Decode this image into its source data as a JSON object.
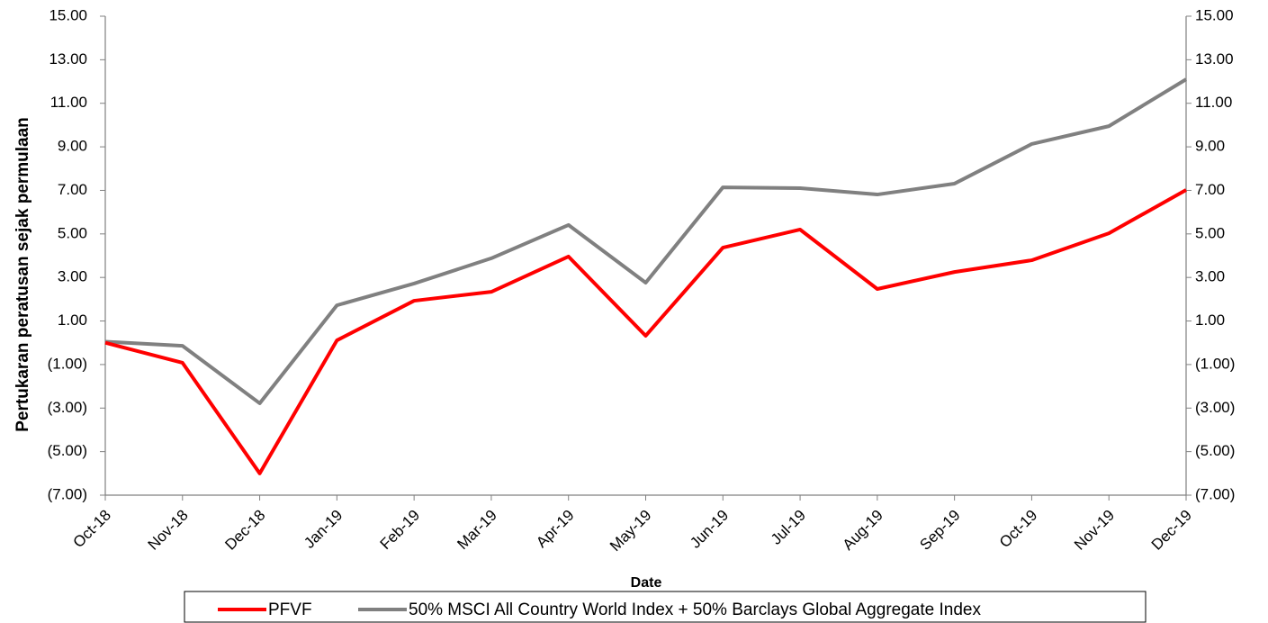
{
  "chart_data": {
    "type": "line",
    "y_label": "Pertukaran peratusan sejak permulaan",
    "x_label": "Date",
    "categories": [
      "Oct-18",
      "Nov-18",
      "Dec-18",
      "Jan-19",
      "Feb-19",
      "Mar-19",
      "Apr-19",
      "May-19",
      "Jun-19",
      "Jul-19",
      "Aug-19",
      "Sep-19",
      "Oct-19",
      "Nov-19",
      "Dec-19"
    ],
    "series": [
      {
        "name": "PFVF",
        "color": "#ff0000",
        "values": [
          0.0,
          -0.92,
          -6.0,
          0.11,
          1.93,
          2.34,
          3.96,
          0.32,
          4.37,
          5.2,
          2.47,
          3.25,
          3.79,
          5.03,
          7.02
        ]
      },
      {
        "name": "50% MSCI All Country World Index + 50% Barclays Global Aggregate Index",
        "color": "#808080",
        "values": [
          0.05,
          -0.14,
          -2.78,
          1.72,
          2.72,
          3.88,
          5.41,
          2.76,
          7.14,
          7.1,
          6.81,
          7.31,
          9.13,
          9.95,
          12.1
        ]
      }
    ],
    "ylim": [
      -7,
      15
    ],
    "yticks": [
      {
        "value": 15,
        "label": "15.00"
      },
      {
        "value": 13,
        "label": "13.00"
      },
      {
        "value": 11,
        "label": "11.00"
      },
      {
        "value": 9,
        "label": "9.00"
      },
      {
        "value": 7,
        "label": "7.00"
      },
      {
        "value": 5,
        "label": "5.00"
      },
      {
        "value": 3,
        "label": "3.00"
      },
      {
        "value": 1,
        "label": "1.00"
      },
      {
        "value": -1,
        "label": "(1.00)"
      },
      {
        "value": -3,
        "label": "(3.00)"
      },
      {
        "value": -5,
        "label": "(5.00)"
      },
      {
        "value": -7,
        "label": "(7.00)"
      }
    ],
    "y2lim": [
      -7,
      15
    ],
    "y2ticks": [
      {
        "value": 15,
        "label": "15.00"
      },
      {
        "value": 13,
        "label": "13.00"
      },
      {
        "value": 11,
        "label": "11.00"
      },
      {
        "value": 9,
        "label": "9.00"
      },
      {
        "value": 7,
        "label": "7.00"
      },
      {
        "value": 5,
        "label": "5.00"
      },
      {
        "value": 3,
        "label": "3.00"
      },
      {
        "value": 1,
        "label": "1.00"
      },
      {
        "value": -1,
        "label": "(1.00)"
      },
      {
        "value": -3,
        "label": "(3.00)"
      },
      {
        "value": -5,
        "label": "(5.00)"
      },
      {
        "value": -7,
        "label": "(7.00)"
      }
    ],
    "negative_tick_color": "#ff0000",
    "grid": false,
    "legend": "bottom"
  }
}
